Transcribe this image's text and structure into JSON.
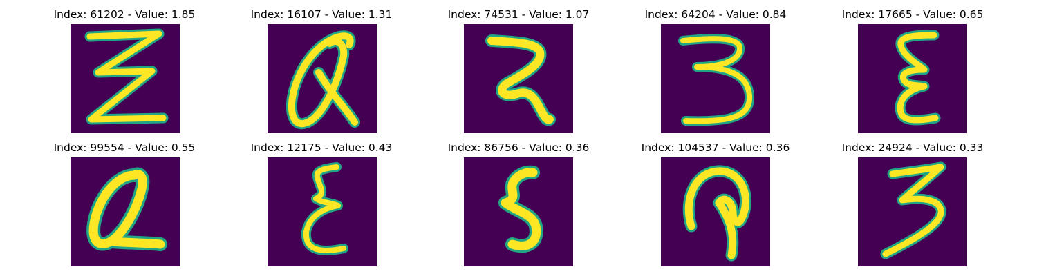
{
  "colors": {
    "background": "#440154",
    "stroke_core": "#fde725",
    "stroke_edge": "#21a585"
  },
  "panels": [
    {
      "title": "Index: 61202 - Value: 1.85",
      "glyph": "Z-like"
    },
    {
      "title": "Index: 16107 - Value: 1.31",
      "glyph": "Q-like"
    },
    {
      "title": "Index: 74531 - Value: 1.07",
      "glyph": "R-like"
    },
    {
      "title": "Index: 64204 - Value: 0.84",
      "glyph": "3-like"
    },
    {
      "title": "Index: 17665 - Value: 0.65",
      "glyph": "E-like"
    },
    {
      "title": "Index: 99554 - Value: 0.55",
      "glyph": "Q-like"
    },
    {
      "title": "Index: 12175 - Value: 0.43",
      "glyph": "E-like"
    },
    {
      "title": "Index: 86756 - Value: 0.36",
      "glyph": "5-like"
    },
    {
      "title": "Index: 104537 - Value: 0.36",
      "glyph": "P-like"
    },
    {
      "title": "Index: 24924 - Value: 0.33",
      "glyph": "3-like"
    }
  ]
}
